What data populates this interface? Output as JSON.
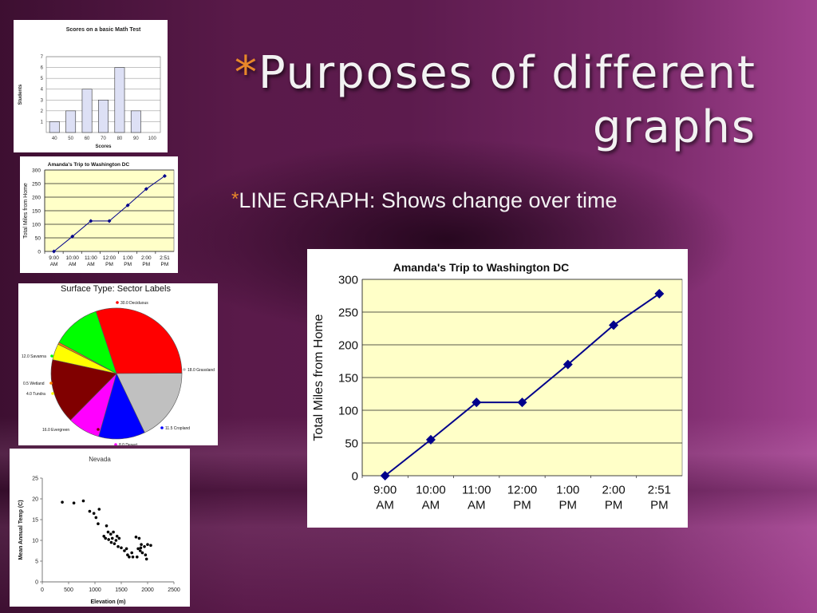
{
  "slide": {
    "title_star": "*",
    "title": "Purposes of different graphs",
    "bullet_star": "*",
    "bullet": "LINE GRAPH: Shows change over time"
  },
  "colors": {
    "accent": "#e8872a",
    "line_series": "#00008b",
    "plot_bg": "#ffffc8"
  },
  "chart_data": [
    {
      "type": "bar",
      "title": "Scores on a basic Math Test",
      "xlabel": "Scores",
      "ylabel": "Students",
      "categories": [
        "40",
        "50",
        "60",
        "70",
        "80",
        "90",
        "100"
      ],
      "values": [
        1,
        2,
        4,
        3,
        6,
        2,
        0
      ],
      "ylim": [
        0,
        7
      ],
      "yticks": [
        1,
        2,
        3,
        4,
        5,
        6,
        7
      ],
      "grid": true
    },
    {
      "type": "line",
      "title": "Amanda's Trip to Washington DC",
      "xlabel": "",
      "ylabel": "Total Miles from Home",
      "categories": [
        "9:00 AM",
        "10:00 AM",
        "11:00 AM",
        "12:00 PM",
        "1:00 PM",
        "2:00 PM",
        "2:51 PM"
      ],
      "values": [
        0,
        55,
        112,
        112,
        170,
        230,
        278
      ],
      "ylim": [
        0,
        300
      ],
      "yticks": [
        0,
        50,
        100,
        150,
        200,
        250,
        300
      ],
      "grid": true
    },
    {
      "type": "pie",
      "title": "Surface Type: Sector Labels",
      "slices": [
        {
          "label": "30.0 Deciduous",
          "value": 30.0,
          "color": "#ff0000"
        },
        {
          "label": "18.0 Grassland",
          "value": 18.0,
          "color": "#c0c0c0"
        },
        {
          "label": "11.5 Cropland",
          "value": 11.5,
          "color": "#0000ff"
        },
        {
          "label": "8.0 Desert",
          "value": 8.0,
          "color": "#ff00ff"
        },
        {
          "label": "16.0 Evergreen",
          "value": 16.0,
          "color": "#800000"
        },
        {
          "label": "4.0 Tundra",
          "value": 4.0,
          "color": "#ffff00"
        },
        {
          "label": "0.5 Wetland",
          "value": 0.5,
          "color": "#ff8000"
        },
        {
          "label": "12.0 Savanna",
          "value": 12.0,
          "color": "#00ff00"
        }
      ]
    },
    {
      "type": "scatter",
      "title": "Nevada",
      "xlabel": "Elevation (m)",
      "ylabel": "Mean Annual Temp (C)",
      "xlim": [
        0,
        2500
      ],
      "ylim": [
        0,
        25
      ],
      "xticks": [
        0,
        500,
        1000,
        1500,
        2000,
        2500
      ],
      "yticks": [
        0,
        5,
        10,
        15,
        20,
        25
      ],
      "points": [
        [
          380,
          19.2
        ],
        [
          600,
          19.0
        ],
        [
          780,
          19.5
        ],
        [
          900,
          17.0
        ],
        [
          980,
          16.5
        ],
        [
          1020,
          15.5
        ],
        [
          1060,
          14.0
        ],
        [
          1080,
          17.5
        ],
        [
          1170,
          11.0
        ],
        [
          1200,
          10.5
        ],
        [
          1220,
          13.5
        ],
        [
          1250,
          12.0
        ],
        [
          1260,
          10.2
        ],
        [
          1300,
          11.5
        ],
        [
          1310,
          9.5
        ],
        [
          1330,
          10.5
        ],
        [
          1350,
          12.0
        ],
        [
          1370,
          9.2
        ],
        [
          1400,
          10.0
        ],
        [
          1420,
          11.0
        ],
        [
          1440,
          8.5
        ],
        [
          1460,
          10.5
        ],
        [
          1500,
          8.2
        ],
        [
          1560,
          7.5
        ],
        [
          1600,
          8.0
        ],
        [
          1620,
          6.5
        ],
        [
          1650,
          6.0
        ],
        [
          1700,
          7.0
        ],
        [
          1780,
          10.8
        ],
        [
          1800,
          6.0
        ],
        [
          1820,
          8.0
        ],
        [
          1840,
          10.5
        ],
        [
          1860,
          7.5
        ],
        [
          1880,
          9.0
        ],
        [
          1900,
          7.0
        ],
        [
          1940,
          8.5
        ],
        [
          1960,
          6.5
        ],
        [
          1980,
          5.5
        ],
        [
          2000,
          9.0
        ],
        [
          2060,
          8.8
        ],
        [
          1870,
          8.2
        ],
        [
          1720,
          6.0
        ]
      ]
    }
  ]
}
